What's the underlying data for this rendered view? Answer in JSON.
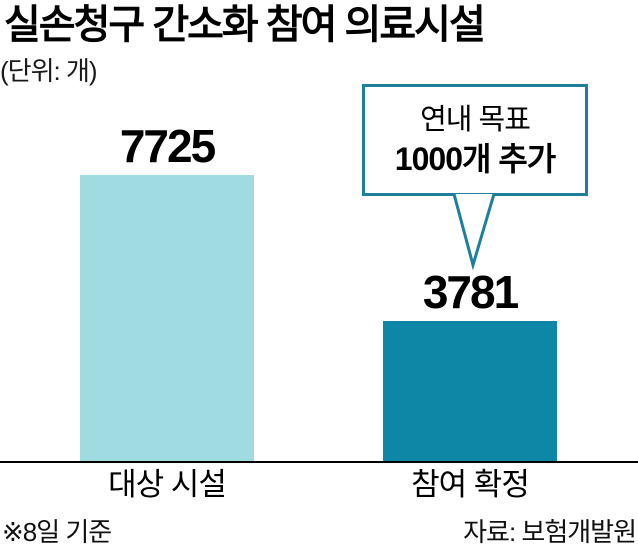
{
  "chart_data": {
    "type": "bar",
    "title": "실손청구 간소화 참여 의료시설",
    "unit_label": "(단위: 개)",
    "categories": [
      "대상 시설",
      "참여 확정"
    ],
    "values": [
      7725,
      3781
    ],
    "value_labels": [
      "7725",
      "3781"
    ],
    "bar_colors": [
      "#a0dbe2",
      "#0e86a6"
    ],
    "ylim": [
      0,
      8000
    ],
    "grid": false,
    "legend": false,
    "annotation": {
      "text_line1": "연내 목표",
      "text_line2": "1000개 추가",
      "points_to_category": "참여 확정"
    },
    "footnote": "※8일 기준",
    "source": "자료: 보험개발원"
  },
  "header": {
    "title": "실손청구 간소화 참여 의료시설",
    "unit": "(단위: 개)"
  },
  "bars": [
    {
      "label": "대상 시설",
      "value": "7725"
    },
    {
      "label": "참여 확정",
      "value": "3781"
    }
  ],
  "callout": {
    "line1": "연내 목표",
    "line2": "1000개 추가"
  },
  "footer": {
    "note": "※8일 기준",
    "source": "자료: 보험개발원"
  },
  "colors": {
    "bar_light": "#a0dbe2",
    "bar_dark": "#0e86a6",
    "callout_border": "#1d7f9c",
    "axis": "#000000",
    "text": "#000000"
  }
}
